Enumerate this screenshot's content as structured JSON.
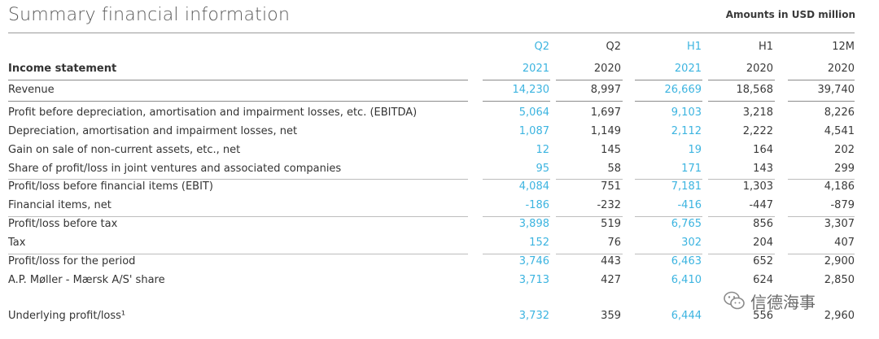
{
  "title": "Summary financial information",
  "amounts_note": "Amounts in USD million",
  "section_label": "Income statement",
  "columns": [
    {
      "period": "Q2",
      "year": "2021",
      "highlight": true
    },
    {
      "period": "Q2",
      "year": "2020",
      "highlight": false
    },
    {
      "period": "H1",
      "year": "2021",
      "highlight": true
    },
    {
      "period": "H1",
      "year": "2020",
      "highlight": false
    },
    {
      "period": "12M",
      "year": "2020",
      "highlight": false
    }
  ],
  "rows": [
    {
      "label": "Revenue",
      "values": [
        "14,230",
        "8,997",
        "26,669",
        "18,568",
        "39,740"
      ]
    },
    {
      "label": "Profit before depreciation, amortisation and impairment losses, etc. (EBITDA)",
      "values": [
        "5,064",
        "1,697",
        "9,103",
        "3,218",
        "8,226"
      ]
    },
    {
      "label": "Depreciation, amortisation and impairment losses, net",
      "values": [
        "1,087",
        "1,149",
        "2,112",
        "2,222",
        "4,541"
      ]
    },
    {
      "label": "Gain on sale of non-current assets, etc., net",
      "values": [
        "12",
        "145",
        "19",
        "164",
        "202"
      ]
    },
    {
      "label": "Share of profit/loss in joint ventures and associated companies",
      "values": [
        "95",
        "58",
        "171",
        "143",
        "299"
      ]
    },
    {
      "label": "Profit/loss before financial items (EBIT)",
      "values": [
        "4,084",
        "751",
        "7,181",
        "1,303",
        "4,186"
      ]
    },
    {
      "label": "Financial items, net",
      "values": [
        "-186",
        "-232",
        "-416",
        "-447",
        "-879"
      ]
    },
    {
      "label": "Profit/loss before tax",
      "values": [
        "3,898",
        "519",
        "6,765",
        "856",
        "3,307"
      ]
    },
    {
      "label": "Tax",
      "values": [
        "152",
        "76",
        "302",
        "204",
        "407"
      ]
    },
    {
      "label": "Profit/loss for the period",
      "values": [
        "3,746",
        "443",
        "6,463",
        "652",
        "2,900"
      ]
    },
    {
      "label": "A.P. Møller - Mærsk A/S' share",
      "values": [
        "3,713",
        "427",
        "6,410",
        "624",
        "2,850"
      ]
    },
    {
      "label": "Underlying profit/loss¹",
      "values": [
        "3,732",
        "359",
        "6,444",
        "556",
        "2,960"
      ]
    }
  ],
  "colors": {
    "highlight": "#3cb4e0",
    "text": "#333333",
    "rule": "#8c8c8c"
  },
  "watermark": {
    "icon": "wechat-icon",
    "text": "信德海事"
  }
}
